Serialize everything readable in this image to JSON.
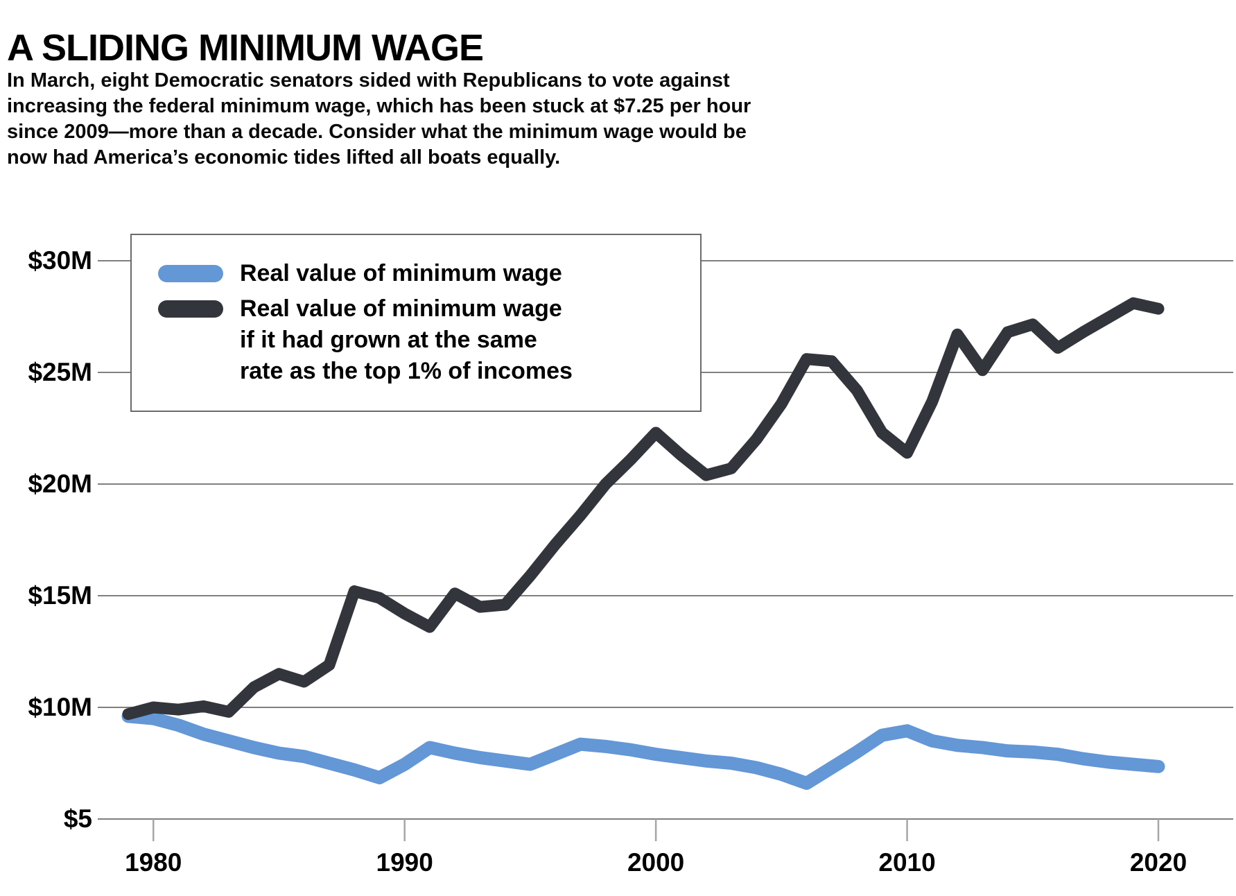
{
  "title": "A SLIDING MINIMUM WAGE",
  "intro_lines": [
    "In March, eight Democratic senators sided with Republicans to vote against",
    "increasing the federal minimum wage, which has been stuck at $7.25 per hour",
    "since 2009—more than a decade. Consider what the minimum wage would be",
    "now had America’s economic tides lifted all boats equally."
  ],
  "colors": {
    "minimum_wage_line": "#6397D6",
    "top1pct_line": "#33353C",
    "gridline": "#7f7f7f",
    "tick": "#a6a6a6",
    "legend_border": "#6a6a6a"
  },
  "legend": {
    "items": [
      {
        "color": "#6397D6",
        "label_lines": [
          "Real value of minimum wage"
        ]
      },
      {
        "color": "#33353C",
        "label_lines": [
          "Real value of minimum wage",
          "if it had grown at the same",
          "rate as the top 1% of incomes"
        ]
      }
    ]
  },
  "chart_data": {
    "type": "line",
    "title": "",
    "xlabel": "",
    "ylabel": "",
    "grid": true,
    "legend_position": "top-left",
    "ylim": [
      5,
      31
    ],
    "xlim": [
      1979,
      2020
    ],
    "ytick_values": [
      5,
      10,
      15,
      20,
      25,
      30
    ],
    "ytick_labels": [
      "$5",
      "$10M",
      "$15M",
      "$20M",
      "$25M",
      "$30M"
    ],
    "xtick_values": [
      1980,
      1990,
      2000,
      2010,
      2020
    ],
    "xtick_labels": [
      "1980",
      "1990",
      "2000",
      "2010",
      "2020"
    ],
    "x": [
      1979,
      1980,
      1981,
      1982,
      1983,
      1984,
      1985,
      1986,
      1987,
      1988,
      1989,
      1990,
      1991,
      1992,
      1993,
      1994,
      1995,
      1996,
      1997,
      1998,
      1999,
      2000,
      2001,
      2002,
      2003,
      2004,
      2005,
      2006,
      2007,
      2008,
      2009,
      2010,
      2011,
      2012,
      2013,
      2014,
      2015,
      2016,
      2017,
      2018,
      2019,
      2020
    ],
    "series": [
      {
        "name": "Real value of minimum wage",
        "color": "#6397D6",
        "values": [
          9.6,
          9.5,
          9.2,
          8.8,
          8.5,
          8.2,
          7.95,
          7.8,
          7.5,
          7.2,
          6.85,
          7.45,
          8.2,
          7.95,
          7.75,
          7.6,
          7.45,
          7.9,
          8.35,
          8.25,
          8.1,
          7.9,
          7.75,
          7.6,
          7.5,
          7.3,
          7.0,
          6.6,
          7.3,
          8.0,
          8.75,
          8.95,
          8.5,
          8.3,
          8.2,
          8.05,
          8.0,
          7.9,
          7.7,
          7.55,
          7.45,
          7.35
        ]
      },
      {
        "name": "Real value of minimum wage if it had grown at the same rate as the top 1% of incomes",
        "color": "#33353C",
        "values": [
          9.7,
          10.0,
          9.9,
          10.05,
          9.8,
          10.9,
          11.5,
          11.15,
          11.9,
          15.2,
          14.9,
          14.2,
          13.6,
          15.1,
          14.5,
          14.6,
          15.9,
          17.3,
          18.6,
          20.0,
          21.1,
          22.3,
          21.3,
          20.4,
          20.7,
          22.0,
          23.6,
          25.6,
          25.5,
          24.2,
          22.3,
          21.4,
          23.7,
          26.7,
          25.1,
          26.8,
          27.15,
          26.1,
          26.8,
          27.45,
          28.1,
          27.85
        ]
      }
    ]
  }
}
